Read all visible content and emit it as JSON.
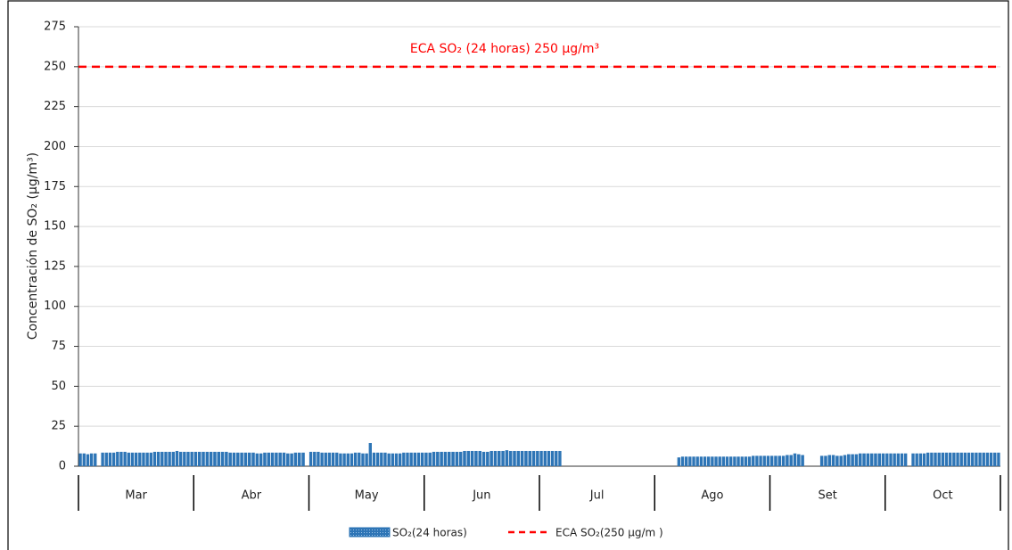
{
  "chart_data": {
    "type": "bar",
    "y_label": "Concentración de SO₂ (µg/m³)",
    "ylim": [
      0,
      275
    ],
    "yticks": [
      0,
      25,
      50,
      75,
      100,
      125,
      150,
      175,
      200,
      225,
      250,
      275
    ],
    "grid": true,
    "series_name": "SO₂(24 horas)",
    "color": "#2e75b6",
    "reference_line": {
      "value": 250,
      "color": "#ff0000",
      "annotation": "ECA SO₂ (24 horas) 250 µg/m³",
      "name": "ECA SO₂(250 µg/m )"
    },
    "months": [
      {
        "name": "Mar",
        "values": [
          8,
          8,
          7.5,
          8,
          8,
          null,
          8.5,
          8.5,
          8.5,
          8.5,
          9,
          9,
          9,
          8.5,
          8.5,
          8.5,
          8.5,
          8.5,
          8.5,
          8.5,
          9,
          9,
          9,
          9,
          9,
          9,
          9.5,
          9,
          9,
          9,
          9
        ]
      },
      {
        "name": "Abr",
        "values": [
          9,
          9,
          9,
          9,
          9,
          9,
          9,
          9,
          9,
          8.5,
          8.5,
          8.5,
          8.5,
          8.5,
          8.5,
          8.5,
          8,
          8,
          8.5,
          8.5,
          8.5,
          8.5,
          8.5,
          8.5,
          8,
          8,
          8.5,
          8.5,
          8.5,
          null
        ]
      },
      {
        "name": "May",
        "values": [
          9,
          9,
          9,
          8.5,
          8.5,
          8.5,
          8.5,
          8.5,
          8,
          8,
          8,
          8,
          8.5,
          8.5,
          8,
          8,
          14.5,
          8.5,
          8.5,
          8.5,
          8.5,
          8,
          8,
          8,
          8,
          8.5,
          8.5,
          8.5,
          8.5,
          8.5,
          8.5
        ]
      },
      {
        "name": "Jun",
        "values": [
          8.5,
          8.5,
          9,
          9,
          9,
          9,
          9,
          9,
          9,
          9,
          9.5,
          9.5,
          9.5,
          9.5,
          9.5,
          9,
          9,
          9.5,
          9.5,
          9.5,
          9.5,
          10,
          9.5,
          9.5,
          9.5,
          9.5,
          9.5,
          9.5,
          9.5,
          9.5
        ]
      },
      {
        "name": "Jul",
        "values": [
          9.5,
          9.5,
          9.5,
          9.5,
          9.5,
          9.5,
          null,
          null,
          null,
          null,
          null,
          null,
          null,
          null,
          null,
          null,
          null,
          null,
          null,
          null,
          null,
          null,
          null,
          null,
          null,
          null,
          null,
          null,
          null,
          null,
          null
        ]
      },
      {
        "name": "Ago",
        "values": [
          null,
          null,
          null,
          null,
          null,
          null,
          5.5,
          6,
          6,
          6,
          6,
          6,
          6,
          6,
          6,
          6,
          6,
          6,
          6,
          6,
          6,
          6,
          6,
          6,
          6,
          6,
          6.5,
          6.5,
          6.5,
          6.5,
          6.5
        ]
      },
      {
        "name": "Set",
        "values": [
          6.5,
          6.5,
          6.5,
          6.5,
          7,
          7,
          8,
          7.5,
          7,
          null,
          null,
          null,
          null,
          6.5,
          6.5,
          7,
          7,
          6.5,
          6.5,
          7,
          7.5,
          7.5,
          7.5,
          8,
          8,
          8,
          8,
          8,
          8,
          8
        ]
      },
      {
        "name": "Oct",
        "values": [
          8,
          8,
          8,
          8,
          8,
          8,
          null,
          8,
          8,
          8,
          8,
          8.5,
          8.5,
          8.5,
          8.5,
          8.5,
          8.5,
          8.5,
          8.5,
          8.5,
          8.5,
          8.5,
          8.5,
          8.5,
          8.5,
          8.5,
          8.5,
          8.5,
          8.5,
          8.5,
          8.5
        ]
      }
    ]
  }
}
